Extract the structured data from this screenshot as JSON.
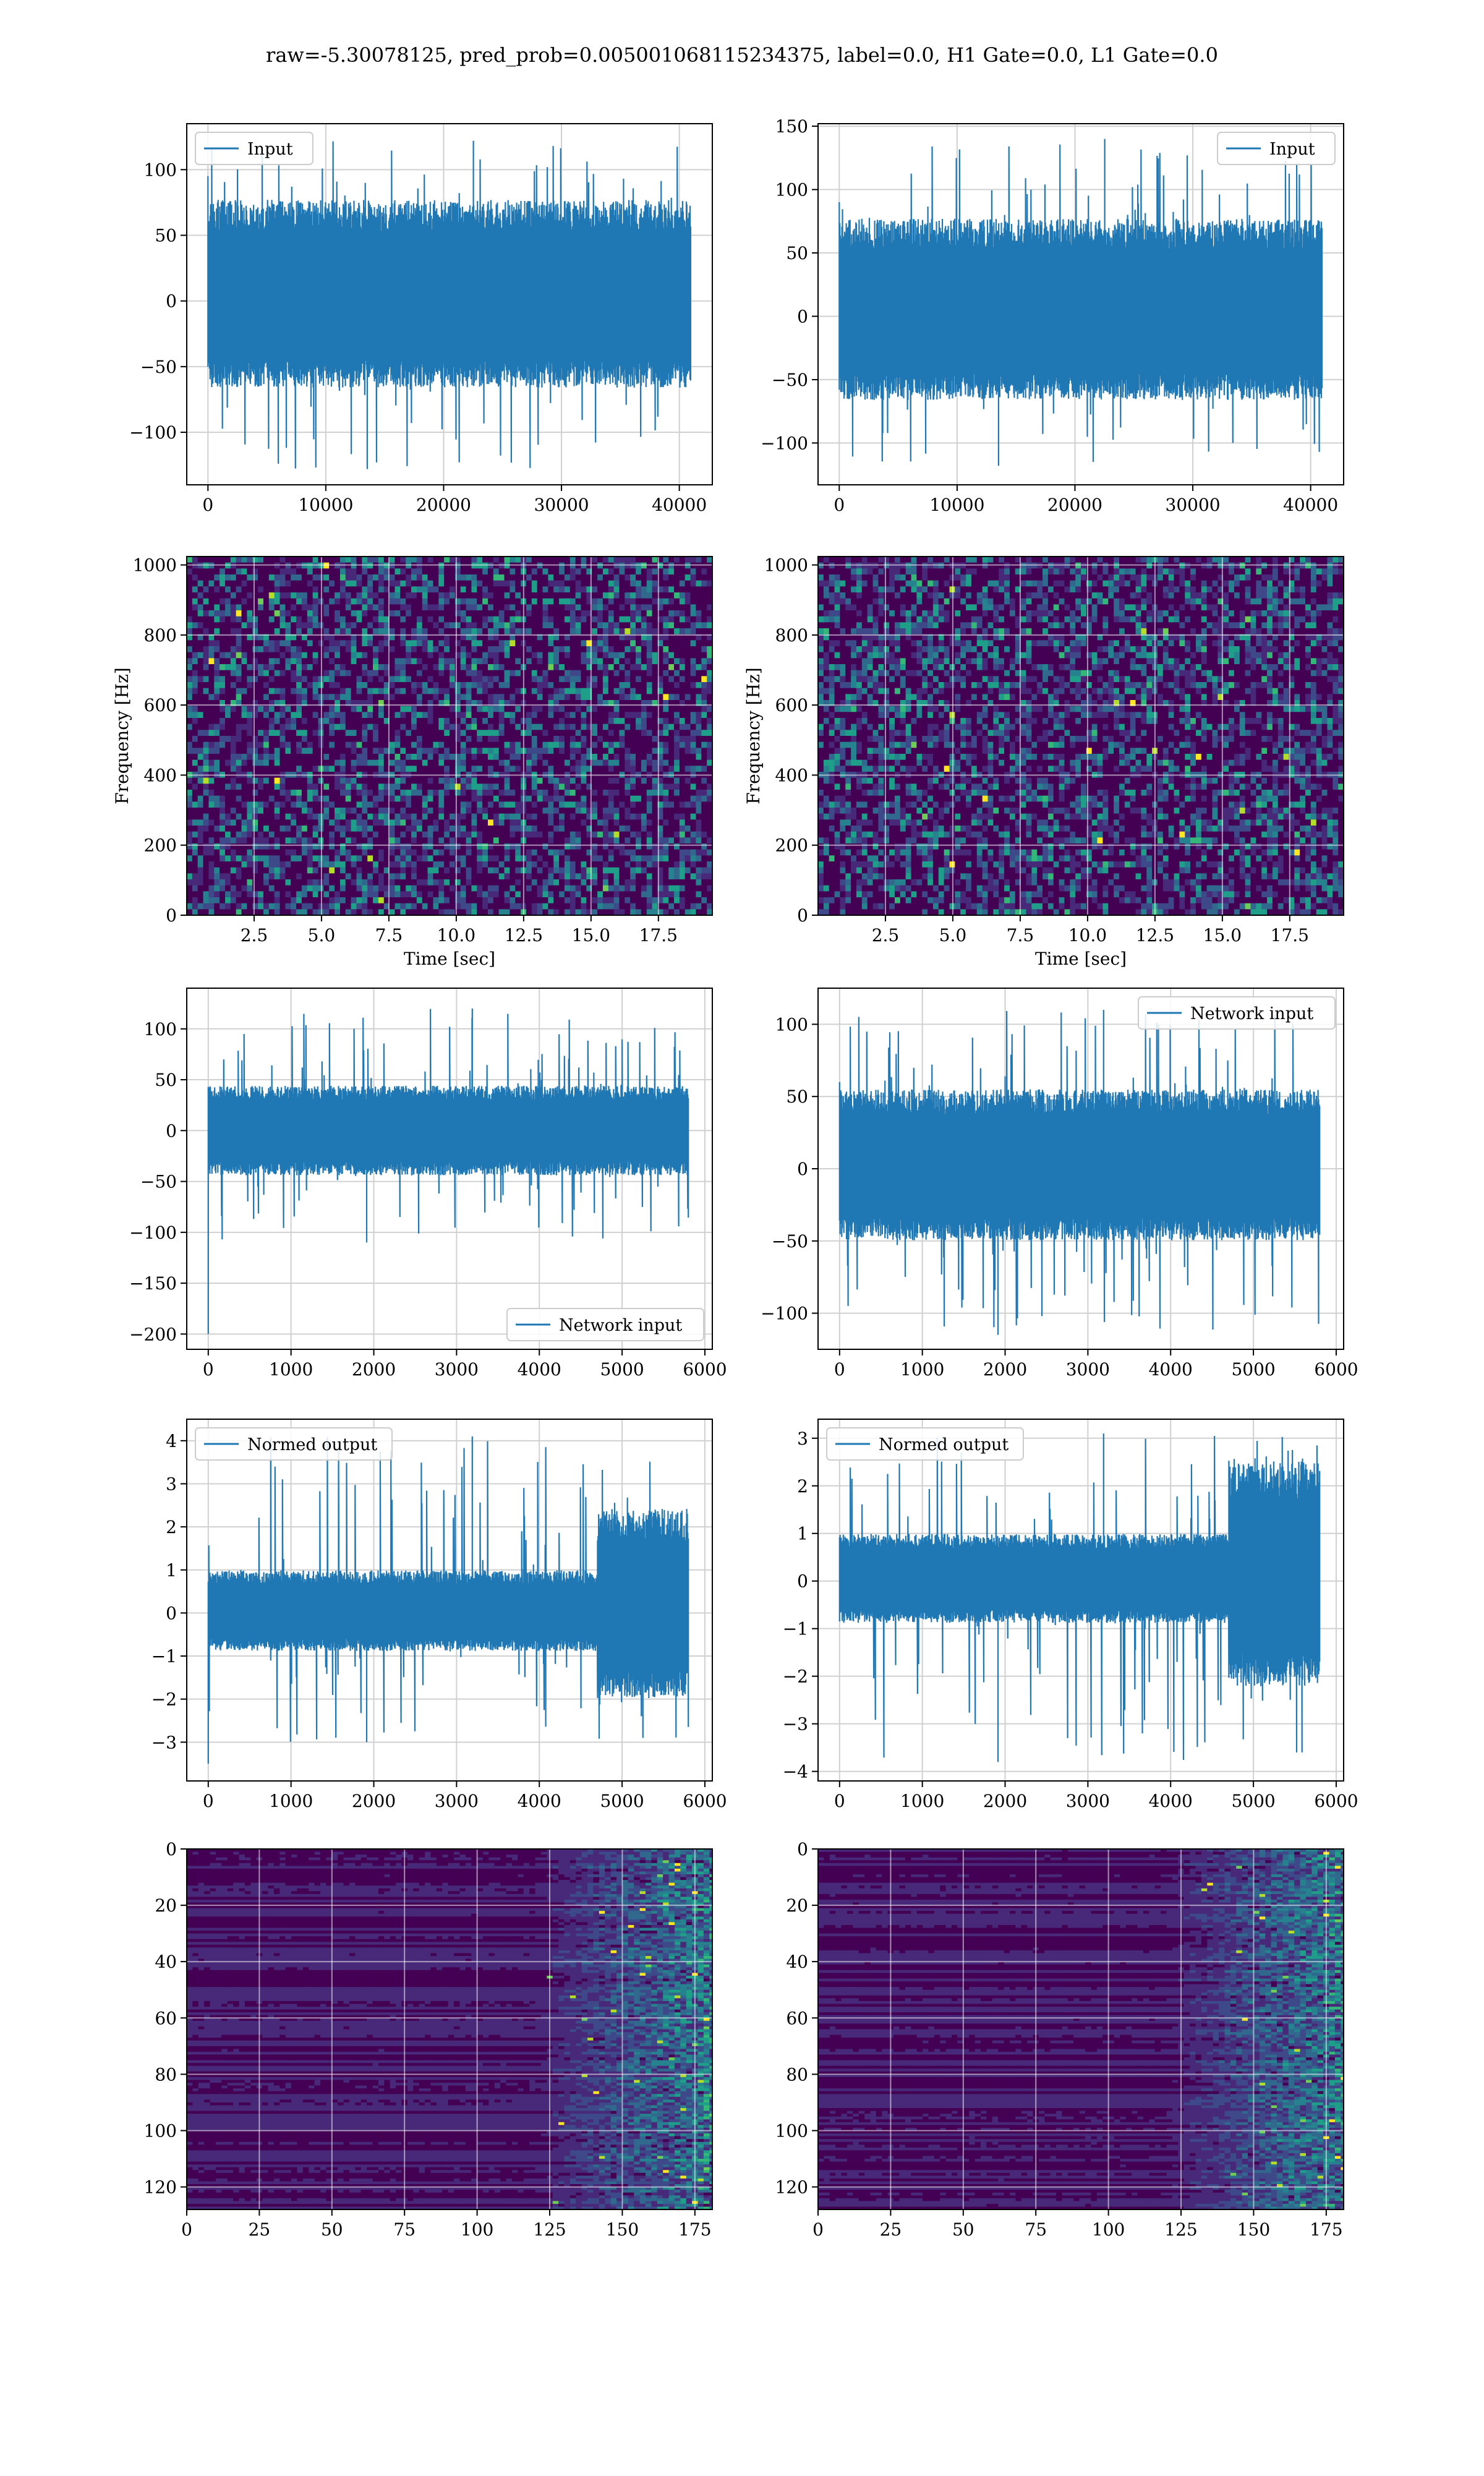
{
  "figure": {
    "suptitle": "raw=-5.30078125, pred_prob=0.005001068115234375, label=0.0, H1 Gate=0.0, L1 Gate=0.0"
  },
  "colors": {
    "line": "#1f77b4",
    "grid": "#d0d0d0",
    "viridis": [
      "#440154",
      "#482878",
      "#3e4989",
      "#31688e",
      "#26828e",
      "#1f9e89",
      "#35b779",
      "#6ece58",
      "#b5de2b",
      "#fde725"
    ]
  },
  "chart_data": [
    {
      "id": "h1-input",
      "type": "line",
      "title": "",
      "xlabel": "",
      "ylabel": "",
      "xlim": [
        -1800,
        42800
      ],
      "ylim": [
        -140,
        135
      ],
      "xticks": [
        0,
        10000,
        20000,
        30000,
        40000
      ],
      "yticks": [
        -100,
        -50,
        0,
        50,
        100
      ],
      "xticklabels": [
        "0",
        "10000",
        "20000",
        "30000",
        "40000"
      ],
      "yticklabels": [
        "−100",
        "−50",
        "0",
        "50",
        "100"
      ],
      "legend": {
        "label": "Input",
        "loc": "upper-left"
      },
      "series": [
        {
          "name": "Input",
          "x_range": [
            0,
            40959
          ],
          "envelope_core": [
            -60,
            70
          ],
          "extremes": [
            -128,
            122
          ],
          "start_spike": 95
        }
      ]
    },
    {
      "id": "l1-input",
      "type": "line",
      "title": "",
      "xlabel": "",
      "ylabel": "",
      "xlim": [
        -1800,
        42800
      ],
      "ylim": [
        -133,
        152
      ],
      "xticks": [
        0,
        10000,
        20000,
        30000,
        40000
      ],
      "yticks": [
        -100,
        -50,
        0,
        50,
        100,
        150
      ],
      "xticklabels": [
        "0",
        "10000",
        "20000",
        "30000",
        "40000"
      ],
      "yticklabels": [
        "−100",
        "−50",
        "0",
        "50",
        "100",
        "150"
      ],
      "legend": {
        "label": "Input",
        "loc": "upper-right"
      },
      "series": [
        {
          "name": "Input",
          "x_range": [
            0,
            40959
          ],
          "envelope_core": [
            -60,
            70
          ],
          "extremes": [
            -118,
            140
          ],
          "start_spike": 90
        }
      ]
    },
    {
      "id": "h1-spectrogram",
      "type": "heatmap",
      "title": "",
      "xlabel": "Time [sec]",
      "ylabel": "Frequency [Hz]",
      "xlim": [
        0,
        19.5
      ],
      "ylim": [
        0,
        1024
      ],
      "xticks": [
        2.5,
        5.0,
        7.5,
        10.0,
        12.5,
        15.0,
        17.5
      ],
      "yticks": [
        0,
        200,
        400,
        600,
        800,
        1000
      ],
      "xticklabels": [
        "2.5",
        "5.0",
        "7.5",
        "10.0",
        "12.5",
        "15.0",
        "17.5"
      ],
      "yticklabels": [
        "0",
        "200",
        "400",
        "600",
        "800",
        "1000"
      ],
      "colormap": "viridis",
      "grid": true
    },
    {
      "id": "l1-spectrogram",
      "type": "heatmap",
      "title": "",
      "xlabel": "Time [sec]",
      "ylabel": "Frequency [Hz]",
      "xlim": [
        0,
        19.5
      ],
      "ylim": [
        0,
        1024
      ],
      "xticks": [
        2.5,
        5.0,
        7.5,
        10.0,
        12.5,
        15.0,
        17.5
      ],
      "yticks": [
        0,
        200,
        400,
        600,
        800,
        1000
      ],
      "xticklabels": [
        "2.5",
        "5.0",
        "7.5",
        "10.0",
        "12.5",
        "15.0",
        "17.5"
      ],
      "yticklabels": [
        "0",
        "200",
        "400",
        "600",
        "800",
        "1000"
      ],
      "colormap": "viridis",
      "grid": true
    },
    {
      "id": "h1-network-input",
      "type": "line",
      "title": "",
      "xlabel": "",
      "ylabel": "",
      "xlim": [
        -260,
        6090
      ],
      "ylim": [
        -215,
        140
      ],
      "xticks": [
        0,
        1000,
        2000,
        3000,
        4000,
        5000,
        6000
      ],
      "yticks": [
        -200,
        -150,
        -100,
        -50,
        0,
        50,
        100
      ],
      "xticklabels": [
        "0",
        "1000",
        "2000",
        "3000",
        "4000",
        "5000",
        "6000"
      ],
      "yticklabels": [
        "−200",
        "−150",
        "−100",
        "−50",
        "0",
        "50",
        "100"
      ],
      "legend": {
        "label": "Network input",
        "loc": "lower-right"
      },
      "series": [
        {
          "name": "Network input",
          "x_range": [
            0,
            5800
          ],
          "envelope_core": [
            -40,
            40
          ],
          "extremes": [
            -110,
            120
          ],
          "start_spike": -200
        }
      ]
    },
    {
      "id": "l1-network-input",
      "type": "line",
      "title": "",
      "xlabel": "",
      "ylabel": "",
      "xlim": [
        -260,
        6090
      ],
      "ylim": [
        -125,
        125
      ],
      "xticks": [
        0,
        1000,
        2000,
        3000,
        4000,
        5000,
        6000
      ],
      "yticks": [
        -100,
        -50,
        0,
        50,
        100
      ],
      "xticklabels": [
        "0",
        "1000",
        "2000",
        "3000",
        "4000",
        "5000",
        "6000"
      ],
      "yticklabels": [
        "−100",
        "−50",
        "0",
        "50",
        "100"
      ],
      "legend": {
        "label": "Network input",
        "loc": "upper-right"
      },
      "series": [
        {
          "name": "Network input",
          "x_range": [
            0,
            5800
          ],
          "envelope_core": [
            -45,
            50
          ],
          "extremes": [
            -115,
            110
          ],
          "start_spike": 60
        }
      ]
    },
    {
      "id": "h1-normed-output",
      "type": "line",
      "title": "",
      "xlabel": "",
      "ylabel": "",
      "xlim": [
        -260,
        6090
      ],
      "ylim": [
        -3.9,
        4.5
      ],
      "xticks": [
        0,
        1000,
        2000,
        3000,
        4000,
        5000,
        6000
      ],
      "yticks": [
        -3,
        -2,
        -1,
        0,
        1,
        2,
        3,
        4
      ],
      "xticklabels": [
        "0",
        "1000",
        "2000",
        "3000",
        "4000",
        "5000",
        "6000"
      ],
      "yticklabels": [
        "−3",
        "−2",
        "−1",
        "0",
        "1",
        "2",
        "3",
        "4"
      ],
      "legend": {
        "label": "Normed output",
        "loc": "upper-left"
      },
      "series": [
        {
          "name": "Normed output",
          "x_range": [
            0,
            5800
          ],
          "envelope_core": [
            -0.8,
            0.9
          ],
          "extremes": [
            -3.0,
            4.1
          ],
          "start_spike": -3.5,
          "burst_start": 4700,
          "burst_core": [
            -1.8,
            2.2
          ]
        }
      ]
    },
    {
      "id": "l1-normed-output",
      "type": "line",
      "title": "",
      "xlabel": "",
      "ylabel": "",
      "xlim": [
        -260,
        6090
      ],
      "ylim": [
        -4.2,
        3.4
      ],
      "xticks": [
        0,
        1000,
        2000,
        3000,
        4000,
        5000,
        6000
      ],
      "yticks": [
        -4,
        -3,
        -2,
        -1,
        0,
        1,
        2,
        3
      ],
      "xticklabels": [
        "0",
        "1000",
        "2000",
        "3000",
        "4000",
        "5000",
        "6000"
      ],
      "yticklabels": [
        "−4",
        "−3",
        "−2",
        "−1",
        "0",
        "1",
        "2",
        "3"
      ],
      "legend": {
        "label": "Normed output",
        "loc": "upper-left"
      },
      "series": [
        {
          "name": "Normed output",
          "x_range": [
            0,
            5800
          ],
          "envelope_core": [
            -0.8,
            0.9
          ],
          "extremes": [
            -3.8,
            3.1
          ],
          "start_spike": 0.8,
          "burst_start": 4700,
          "burst_core": [
            -2.0,
            2.3
          ]
        }
      ]
    },
    {
      "id": "h1-feature-map",
      "type": "heatmap",
      "title": "",
      "xlabel": "",
      "ylabel": "",
      "xlim": [
        0,
        181
      ],
      "ylim": [
        128,
        0
      ],
      "xticks": [
        0,
        25,
        50,
        75,
        100,
        125,
        150,
        175
      ],
      "yticks": [
        0,
        20,
        40,
        60,
        80,
        100,
        120
      ],
      "xticklabels": [
        "0",
        "25",
        "50",
        "75",
        "100",
        "125",
        "150",
        "175"
      ],
      "yticklabels": [
        "0",
        "20",
        "40",
        "60",
        "80",
        "100",
        "120"
      ],
      "colormap": "viridis",
      "grid": true
    },
    {
      "id": "l1-feature-map",
      "type": "heatmap",
      "title": "",
      "xlabel": "",
      "ylabel": "",
      "xlim": [
        0,
        181
      ],
      "ylim": [
        128,
        0
      ],
      "xticks": [
        0,
        25,
        50,
        75,
        100,
        125,
        150,
        175
      ],
      "yticks": [
        0,
        20,
        40,
        60,
        80,
        100,
        120
      ],
      "xticklabels": [
        "0",
        "25",
        "50",
        "75",
        "100",
        "125",
        "150",
        "175"
      ],
      "yticklabels": [
        "0",
        "20",
        "40",
        "60",
        "80",
        "100",
        "120"
      ],
      "colormap": "viridis",
      "grid": true
    }
  ]
}
